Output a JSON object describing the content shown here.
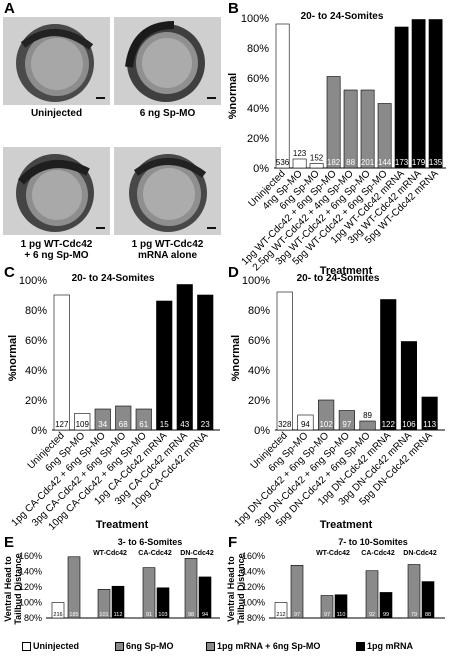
{
  "panel_letters": {
    "A": "A",
    "B": "B",
    "C": "C",
    "D": "D",
    "E": "E",
    "F": "F"
  },
  "photos": [
    {
      "caption": "Uninjected"
    },
    {
      "caption": "6 ng Sp-MO"
    },
    {
      "caption": "1 pg WT-Cdc42\n+ 6 ng Sp-MO"
    },
    {
      "caption": "1 pg WT-Cdc42\nmRNA alone"
    }
  ],
  "colors": {
    "white": "#ffffff",
    "gray": "#8a8a8a",
    "black": "#000000"
  },
  "chart_data": [
    {
      "id": "B",
      "type": "bar",
      "title": "20- to 24-Somites",
      "ylabel": "%normal",
      "xlabel": "Treatment",
      "ylim": [
        0,
        100
      ],
      "yticks": [
        "0%",
        "20%",
        "40%",
        "60%",
        "80%",
        "100%"
      ],
      "categories": [
        "Uninjected",
        "4ng Sp-MO",
        "6ng Sp-MO",
        "1pg WT-Cdc42 + 6ng Sp-MO",
        "2.5pg WT-Cdc42 + 4ng Sp-MO",
        "3pg WT-Cdc42 + 6ng Sp-MO",
        "5pg WT-Cdc42 + 6ng Sp-MO",
        "1pg WT-Cdc42 mRNA",
        "3pg WT-Cdc42 mRNA",
        "5pg WT-Cdc42 mRNA"
      ],
      "values": [
        96,
        6,
        3,
        61,
        52,
        52,
        43,
        94,
        99,
        99
      ],
      "n": [
        "536",
        "123",
        "152",
        "182",
        "88",
        "201",
        "144",
        "173",
        "179",
        "135"
      ],
      "colors": [
        "white",
        "white",
        "white",
        "gray",
        "gray",
        "gray",
        "gray",
        "black",
        "black",
        "black"
      ]
    },
    {
      "id": "C",
      "type": "bar",
      "title": "20- to 24-Somites",
      "ylabel": "%normal",
      "xlabel": "Treatment",
      "ylim": [
        0,
        100
      ],
      "yticks": [
        "0%",
        "20%",
        "40%",
        "60%",
        "80%",
        "100%"
      ],
      "categories": [
        "Uninjected",
        "6ng Sp-MO",
        "1pg CA-Cdc42 + 6ng Sp-MO",
        "3pg CA-Cdc42 + 6ng Sp-MO",
        "10pg CA-Cdc42 + 6ng Sp-MO",
        "1pg CA-Cdc42 mRNA",
        "3pg CA-Cdc42 mRNA",
        "10pg CA-Cdc42 mRNA"
      ],
      "values": [
        90,
        11,
        14,
        16,
        14,
        86,
        97,
        90
      ],
      "n": [
        "127",
        "109",
        "34",
        "68",
        "61",
        "15",
        "43",
        "23"
      ],
      "colors": [
        "white",
        "white",
        "gray",
        "gray",
        "gray",
        "black",
        "black",
        "black"
      ]
    },
    {
      "id": "D",
      "type": "bar",
      "title": "20- to 24-Somites",
      "ylabel": "%normal",
      "xlabel": "Treatment",
      "ylim": [
        0,
        100
      ],
      "yticks": [
        "0%",
        "20%",
        "40%",
        "60%",
        "80%",
        "100%"
      ],
      "categories": [
        "Uninjected",
        "6ng Sp-MO",
        "1pg DN-Cdc42 + 6ng Sp-MO",
        "3pg DN-Cdc42 + 6ng Sp-MO",
        "5pg DN-Cdc42 + 6ng Sp-MO",
        "1pg DN-Cdc42 mRNA",
        "3pg DN-Cdc42 mRNA",
        "5pg DN-Cdc42 mRNA"
      ],
      "values": [
        92,
        10,
        20,
        13,
        6,
        87,
        59,
        22
      ],
      "n": [
        "328",
        "94",
        "102",
        "97",
        "89",
        "122",
        "106",
        "113"
      ],
      "colors": [
        "white",
        "white",
        "gray",
        "gray",
        "gray",
        "black",
        "black",
        "black"
      ]
    },
    {
      "id": "E",
      "type": "bar",
      "title": "3- to 6-Somites",
      "ylabel": "Ventral Head to Tailbud Distance",
      "ylim": [
        80,
        160
      ],
      "yticks": [
        "80%",
        "100%",
        "120%",
        "140%",
        "160%"
      ],
      "group_labels": [
        "WT-Cdc42",
        "CA-Cdc42",
        "DN-Cdc42"
      ],
      "values": [
        100,
        159,
        117,
        121,
        145,
        119,
        157,
        133
      ],
      "n": [
        "216",
        "185",
        "101",
        "112",
        "91",
        "103",
        "98",
        "94"
      ],
      "colors": [
        "white",
        "gray",
        "gray",
        "black",
        "gray",
        "black",
        "gray",
        "black"
      ]
    },
    {
      "id": "F",
      "type": "bar",
      "title": "7- to 10-Somites",
      "ylabel": "Ventral Head to Tailbud Distance",
      "ylim": [
        80,
        160
      ],
      "yticks": [
        "80%",
        "100%",
        "120%",
        "140%",
        "160%"
      ],
      "group_labels": [
        "WT-Cdc42",
        "CA-Cdc42",
        "DN-Cdc42"
      ],
      "values": [
        100,
        148,
        109,
        110,
        141,
        113,
        149,
        127
      ],
      "n": [
        "212",
        "97",
        "97",
        "110",
        "92",
        "99",
        "79",
        "88"
      ],
      "colors": [
        "white",
        "gray",
        "gray",
        "black",
        "gray",
        "black",
        "gray",
        "black"
      ]
    }
  ],
  "legend": [
    {
      "label": "Uninjected",
      "color": "white"
    },
    {
      "label": "6ng Sp-MO",
      "color": "gray"
    },
    {
      "label": "1pg mRNA + 6ng Sp-MO",
      "color": "gray"
    },
    {
      "label": "1pg mRNA",
      "color": "black"
    }
  ]
}
